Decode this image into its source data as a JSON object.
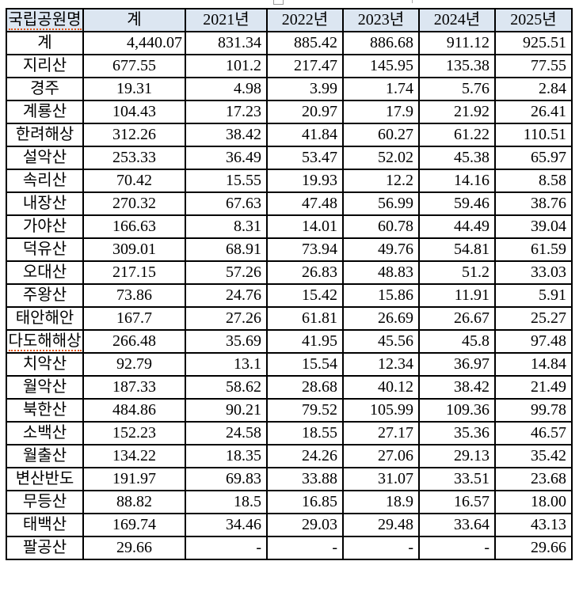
{
  "colors": {
    "header_bg": "#dce6f1",
    "table_border": "#000000",
    "spellcheck_underline": "#e2571c",
    "text": "#000000"
  },
  "table": {
    "columns": [
      {
        "label": "국립공원명",
        "misspelled": true
      },
      {
        "label": "계",
        "misspelled": false
      },
      {
        "label": "2021년",
        "misspelled": false
      },
      {
        "label": "2022년",
        "misspelled": false
      },
      {
        "label": "2023년",
        "misspelled": false
      },
      {
        "label": "2024년",
        "misspelled": false
      },
      {
        "label": "2025년",
        "misspelled": false
      }
    ],
    "rows": [
      {
        "name": "계",
        "total": "4,440.07",
        "years": [
          "831.34",
          "885.42",
          "886.68",
          "911.12",
          "925.51"
        ],
        "total_align": "right",
        "misspelled": false
      },
      {
        "name": "지리산",
        "total": "677.55",
        "years": [
          "101.2",
          "217.47",
          "145.95",
          "135.38",
          "77.55"
        ],
        "misspelled": false
      },
      {
        "name": "경주",
        "total": "19.31",
        "years": [
          "4.98",
          "3.99",
          "1.74",
          "5.76",
          "2.84"
        ],
        "misspelled": false
      },
      {
        "name": "계룡산",
        "total": "104.43",
        "years": [
          "17.23",
          "20.97",
          "17.9",
          "21.92",
          "26.41"
        ],
        "misspelled": false
      },
      {
        "name": "한려해상",
        "total": "312.26",
        "years": [
          "38.42",
          "41.84",
          "60.27",
          "61.22",
          "110.51"
        ],
        "misspelled": false
      },
      {
        "name": "설악산",
        "total": "253.33",
        "years": [
          "36.49",
          "53.47",
          "52.02",
          "45.38",
          "65.97"
        ],
        "misspelled": false
      },
      {
        "name": "속리산",
        "total": "70.42",
        "years": [
          "15.55",
          "19.93",
          "12.2",
          "14.16",
          "8.58"
        ],
        "misspelled": false
      },
      {
        "name": "내장산",
        "total": "270.32",
        "years": [
          "67.63",
          "47.48",
          "56.99",
          "59.46",
          "38.76"
        ],
        "misspelled": false
      },
      {
        "name": "가야산",
        "total": "166.63",
        "years": [
          "8.31",
          "14.01",
          "60.78",
          "44.49",
          "39.04"
        ],
        "misspelled": false
      },
      {
        "name": "덕유산",
        "total": "309.01",
        "years": [
          "68.91",
          "73.94",
          "49.76",
          "54.81",
          "61.59"
        ],
        "misspelled": false
      },
      {
        "name": "오대산",
        "total": "217.15",
        "years": [
          "57.26",
          "26.83",
          "48.83",
          "51.2",
          "33.03"
        ],
        "misspelled": false
      },
      {
        "name": "주왕산",
        "total": "73.86",
        "years": [
          "24.76",
          "15.42",
          "15.86",
          "11.91",
          "5.91"
        ],
        "misspelled": false
      },
      {
        "name": "태안해안",
        "total": "167.7",
        "years": [
          "27.26",
          "61.81",
          "26.69",
          "26.67",
          "25.27"
        ],
        "misspelled": false
      },
      {
        "name": "다도해해상",
        "total": "266.48",
        "years": [
          "35.69",
          "41.95",
          "45.56",
          "45.8",
          "97.48"
        ],
        "misspelled": true
      },
      {
        "name": "치악산",
        "total": "92.79",
        "years": [
          "13.1",
          "15.54",
          "12.34",
          "36.97",
          "14.84"
        ],
        "misspelled": false
      },
      {
        "name": "월악산",
        "total": "187.33",
        "years": [
          "58.62",
          "28.68",
          "40.12",
          "38.42",
          "21.49"
        ],
        "misspelled": false
      },
      {
        "name": "북한산",
        "total": "484.86",
        "years": [
          "90.21",
          "79.52",
          "105.99",
          "109.36",
          "99.78"
        ],
        "misspelled": false
      },
      {
        "name": "소백산",
        "total": "152.23",
        "years": [
          "24.58",
          "18.55",
          "27.17",
          "35.36",
          "46.57"
        ],
        "misspelled": false
      },
      {
        "name": "월출산",
        "total": "134.22",
        "years": [
          "18.35",
          "24.26",
          "27.06",
          "29.13",
          "35.42"
        ],
        "misspelled": false
      },
      {
        "name": "변산반도",
        "total": "191.97",
        "years": [
          "69.83",
          "33.88",
          "31.07",
          "33.51",
          "23.68"
        ],
        "misspelled": false
      },
      {
        "name": "무등산",
        "total": "88.82",
        "years": [
          "18.5",
          "16.85",
          "18.9",
          "16.57",
          "18.00"
        ],
        "misspelled": false
      },
      {
        "name": "태백산",
        "total": "169.74",
        "years": [
          "34.46",
          "29.03",
          "29.48",
          "33.64",
          "43.13"
        ],
        "misspelled": false
      },
      {
        "name": "팔공산",
        "total": "29.66",
        "years": [
          "-",
          "-",
          "-",
          "-",
          "29.66"
        ],
        "misspelled": false
      }
    ]
  }
}
